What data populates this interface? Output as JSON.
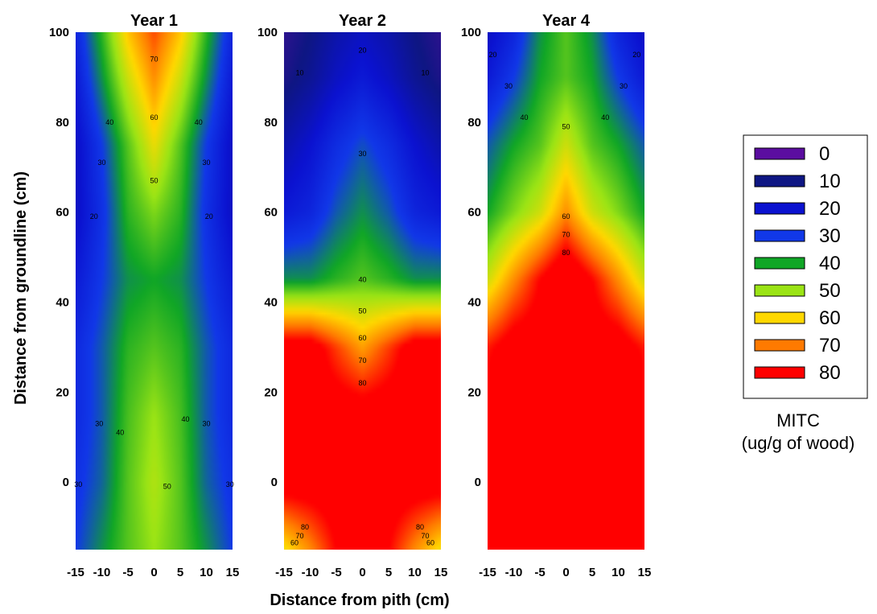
{
  "chart_data": {
    "type": "heatmap",
    "xlabel": "Distance from pith (cm)",
    "ylabel": "Distance from groundline (cm)",
    "xlim": [
      -15,
      15
    ],
    "ylim": [
      -15,
      100
    ],
    "x_ticks": [
      "-15",
      "-10",
      "-5",
      "0",
      "5",
      "10",
      "15"
    ],
    "y_ticks": [
      "0",
      "20",
      "40",
      "60",
      "80",
      "100"
    ],
    "x_nodes": [
      -15,
      -10,
      -5,
      0,
      5,
      10,
      15
    ],
    "y_nodes": [
      -15,
      0,
      15,
      30,
      45,
      60,
      75,
      90,
      100
    ],
    "colorbar": {
      "title_line1": "MITC",
      "title_line2": "(ug/g of wood)",
      "levels": [
        {
          "value": "0",
          "color": "#5b0da0"
        },
        {
          "value": "10",
          "color": "#0e1683"
        },
        {
          "value": "20",
          "color": "#0b12d0"
        },
        {
          "value": "30",
          "color": "#1138e8"
        },
        {
          "value": "40",
          "color": "#10a626"
        },
        {
          "value": "50",
          "color": "#9be415"
        },
        {
          "value": "60",
          "color": "#ffd800"
        },
        {
          "value": "70",
          "color": "#ff7a00"
        },
        {
          "value": "80",
          "color": "#ff0000"
        }
      ]
    },
    "panels": [
      {
        "title": "Year 1",
        "grid": [
          [
            30,
            38,
            45,
            50,
            45,
            38,
            30
          ],
          [
            28,
            34,
            45,
            52,
            45,
            34,
            28
          ],
          [
            26,
            33,
            44,
            50,
            44,
            33,
            26
          ],
          [
            26,
            33,
            42,
            45,
            42,
            33,
            26
          ],
          [
            22,
            30,
            38,
            40,
            38,
            30,
            22
          ],
          [
            18,
            28,
            42,
            48,
            42,
            28,
            18
          ],
          [
            18,
            30,
            45,
            58,
            45,
            30,
            18
          ],
          [
            22,
            38,
            55,
            68,
            55,
            38,
            22
          ],
          [
            25,
            42,
            62,
            74,
            62,
            42,
            25
          ]
        ],
        "contour_labels": [
          {
            "text": "70",
            "x": 0,
            "y": 94
          },
          {
            "text": "60",
            "x": 0,
            "y": 81
          },
          {
            "text": "50",
            "x": 0,
            "y": 67
          },
          {
            "text": "40",
            "x": -8.5,
            "y": 80
          },
          {
            "text": "40",
            "x": 8.5,
            "y": 80
          },
          {
            "text": "30",
            "x": -10,
            "y": 71
          },
          {
            "text": "30",
            "x": 10,
            "y": 71
          },
          {
            "text": "20",
            "x": -11.5,
            "y": 59
          },
          {
            "text": "20",
            "x": 10.5,
            "y": 59
          },
          {
            "text": "30",
            "x": -10.5,
            "y": 13
          },
          {
            "text": "40",
            "x": -6.5,
            "y": 11
          },
          {
            "text": "40",
            "x": 6,
            "y": 14
          },
          {
            "text": "30",
            "x": 10,
            "y": 13
          },
          {
            "text": "50",
            "x": 2.5,
            "y": -1
          },
          {
            "text": "30",
            "x": -14.5,
            "y": -0.5
          },
          {
            "text": "30",
            "x": 14.5,
            "y": -0.5
          }
        ]
      },
      {
        "title": "Year 2",
        "grid": [
          [
            58,
            68,
            80,
            85,
            80,
            68,
            58
          ],
          [
            85,
            85,
            85,
            85,
            85,
            85,
            85
          ],
          [
            85,
            85,
            85,
            85,
            85,
            85,
            85
          ],
          [
            85,
            85,
            75,
            66,
            75,
            85,
            85
          ],
          [
            38,
            38,
            42,
            45,
            42,
            38,
            38
          ],
          [
            22,
            25,
            33,
            38,
            33,
            25,
            22
          ],
          [
            15,
            20,
            27,
            32,
            27,
            20,
            15
          ],
          [
            8,
            12,
            18,
            22,
            18,
            12,
            8
          ],
          [
            6,
            10,
            15,
            18,
            15,
            10,
            6
          ]
        ],
        "contour_labels": [
          {
            "text": "20",
            "x": 0,
            "y": 96
          },
          {
            "text": "10",
            "x": -12,
            "y": 91
          },
          {
            "text": "10",
            "x": 12,
            "y": 91
          },
          {
            "text": "30",
            "x": 0,
            "y": 73
          },
          {
            "text": "40",
            "x": 0,
            "y": 45
          },
          {
            "text": "50",
            "x": 0,
            "y": 38
          },
          {
            "text": "60",
            "x": 0,
            "y": 32
          },
          {
            "text": "70",
            "x": 0,
            "y": 27
          },
          {
            "text": "80",
            "x": 0,
            "y": 22
          },
          {
            "text": "80",
            "x": -11,
            "y": -10
          },
          {
            "text": "70",
            "x": -12,
            "y": -12
          },
          {
            "text": "60",
            "x": -13,
            "y": -13.5
          },
          {
            "text": "80",
            "x": 11,
            "y": -10
          },
          {
            "text": "70",
            "x": 12,
            "y": -12
          },
          {
            "text": "60",
            "x": 13,
            "y": -13.5
          }
        ]
      },
      {
        "title": "Year 4",
        "grid": [
          [
            85,
            85,
            85,
            85,
            85,
            85,
            85
          ],
          [
            85,
            85,
            85,
            85,
            85,
            85,
            85
          ],
          [
            85,
            85,
            85,
            85,
            85,
            85,
            85
          ],
          [
            78,
            85,
            85,
            85,
            85,
            85,
            78
          ],
          [
            55,
            68,
            80,
            90,
            80,
            68,
            55
          ],
          [
            40,
            48,
            55,
            68,
            55,
            48,
            40
          ],
          [
            33,
            40,
            45,
            55,
            45,
            40,
            33
          ],
          [
            22,
            30,
            40,
            45,
            40,
            30,
            22
          ],
          [
            18,
            25,
            38,
            45,
            38,
            25,
            18
          ]
        ],
        "contour_labels": [
          {
            "text": "20",
            "x": -14,
            "y": 95
          },
          {
            "text": "20",
            "x": 13.5,
            "y": 95
          },
          {
            "text": "30",
            "x": -11,
            "y": 88
          },
          {
            "text": "30",
            "x": 11,
            "y": 88
          },
          {
            "text": "40",
            "x": -8,
            "y": 81
          },
          {
            "text": "40",
            "x": 7.5,
            "y": 81
          },
          {
            "text": "50",
            "x": 0,
            "y": 79
          },
          {
            "text": "60",
            "x": 0,
            "y": 59
          },
          {
            "text": "70",
            "x": 0,
            "y": 55
          },
          {
            "text": "80",
            "x": 0,
            "y": 51
          }
        ]
      }
    ]
  }
}
